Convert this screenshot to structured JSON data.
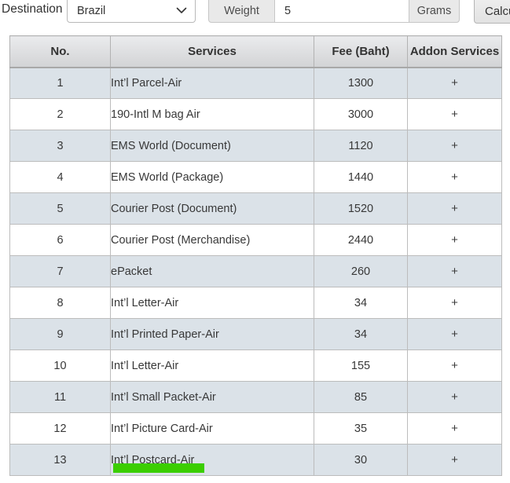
{
  "toolbar": {
    "destination_label": "Destination",
    "destination_value": "Brazil",
    "weight_label": "Weight",
    "weight_value": "5",
    "unit_label": "Grams",
    "calculate_label": "Calculate"
  },
  "table": {
    "headers": [
      "No.",
      "Services",
      "Fee (Baht)",
      "Addon Services"
    ],
    "plus_label": "+",
    "rows": [
      {
        "no": "1",
        "service": "Int’l Parcel-Air",
        "fee": "1300"
      },
      {
        "no": "2",
        "service": "190-Intl M bag Air",
        "fee": "3000"
      },
      {
        "no": "3",
        "service": "EMS World (Document)",
        "fee": "1120"
      },
      {
        "no": "4",
        "service": "EMS World (Package)",
        "fee": "1440"
      },
      {
        "no": "5",
        "service": "Courier Post (Document)",
        "fee": "1520"
      },
      {
        "no": "6",
        "service": "Courier Post (Merchandise)",
        "fee": "2440"
      },
      {
        "no": "7",
        "service": "ePacket",
        "fee": "260"
      },
      {
        "no": "8",
        "service": "Int’l Letter-Air",
        "fee": "34"
      },
      {
        "no": "9",
        "service": "Int’l Printed Paper-Air",
        "fee": "34"
      },
      {
        "no": "10",
        "service": "Int’l Letter-Air",
        "fee": "155"
      },
      {
        "no": "11",
        "service": "Int’l Small Packet-Air",
        "fee": "85"
      },
      {
        "no": "12",
        "service": "Int’l Picture Card-Air",
        "fee": "35"
      },
      {
        "no": "13",
        "service": "Int’l Postcard-Air",
        "fee": "30",
        "highlighted": true
      }
    ],
    "colors": {
      "stripe": "#dbe2e8",
      "highlight": "#3bce01"
    }
  }
}
